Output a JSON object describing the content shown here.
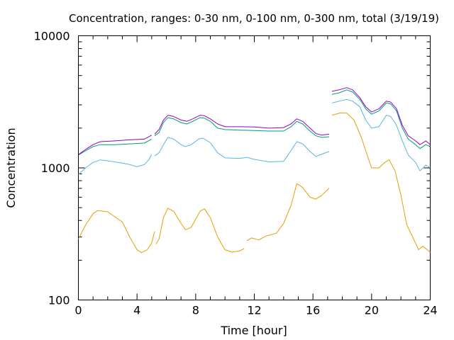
{
  "chart_data": {
    "type": "line",
    "title": "Concentration, ranges: 0-30 nm, 0-100 nm, 0-300 nm, total (3/19/19)",
    "xlabel": "Time [hour]",
    "ylabel": "Concentration",
    "xlim": [
      0,
      24
    ],
    "ylim": [
      100,
      10000
    ],
    "yscale": "log",
    "grid": false,
    "legend": "none",
    "x_ticks": [
      0,
      4,
      8,
      12,
      16,
      20,
      24
    ],
    "x_tick_labels": [
      "0",
      "4",
      "8",
      "12",
      "16",
      "20",
      "24"
    ],
    "y_ticks": [
      100,
      1000,
      10000
    ],
    "y_tick_labels": [
      "100",
      "1000",
      "10000"
    ],
    "series": [
      {
        "color": "#e69f00",
        "segments": [
          [
            [
              0,
              290
            ],
            [
              0.5,
              370
            ],
            [
              1,
              450
            ],
            [
              1.3,
              475
            ],
            [
              2,
              465
            ],
            [
              3,
              390
            ],
            [
              3.5,
              300
            ],
            [
              4,
              240
            ],
            [
              4.3,
              228
            ],
            [
              4.7,
              240
            ],
            [
              5,
              270
            ],
            [
              5.2,
              330
            ]
          ],
          [
            [
              5.3,
              265
            ],
            [
              5.5,
              290
            ],
            [
              5.8,
              420
            ],
            [
              6.1,
              495
            ],
            [
              6.5,
              470
            ],
            [
              7,
              380
            ],
            [
              7.3,
              340
            ],
            [
              7.7,
              355
            ],
            [
              8.3,
              470
            ],
            [
              8.6,
              490
            ],
            [
              9,
              420
            ],
            [
              9.5,
              300
            ],
            [
              10,
              240
            ],
            [
              10.5,
              230
            ],
            [
              11,
              235
            ],
            [
              11.3,
              245
            ]
          ],
          [
            [
              11.5,
              280
            ],
            [
              11.8,
              295
            ],
            [
              12.3,
              285
            ],
            [
              12.8,
              305
            ],
            [
              13.5,
              320
            ],
            [
              14,
              380
            ],
            [
              14.5,
              520
            ],
            [
              14.9,
              760
            ],
            [
              15.3,
              710
            ],
            [
              15.8,
              600
            ],
            [
              16.2,
              580
            ],
            [
              16.6,
              620
            ],
            [
              17.1,
              700
            ]
          ],
          [
            [
              17.3,
              2500
            ],
            [
              17.8,
              2600
            ],
            [
              18.3,
              2600
            ],
            [
              18.8,
              2300
            ],
            [
              19.3,
              1700
            ],
            [
              19.7,
              1250
            ],
            [
              20,
              1000
            ],
            [
              20.5,
              1000
            ],
            [
              20.9,
              1100
            ],
            [
              21.2,
              1150
            ],
            [
              21.6,
              950
            ],
            [
              22,
              620
            ],
            [
              22.4,
              370
            ],
            [
              22.8,
              300
            ],
            [
              23.2,
              240
            ],
            [
              23.5,
              255
            ],
            [
              24,
              230
            ]
          ]
        ]
      },
      {
        "color": "#56b4e9",
        "segments": [
          [
            [
              0,
              890
            ],
            [
              0.5,
              1000
            ],
            [
              1,
              1100
            ],
            [
              1.5,
              1150
            ],
            [
              2.5,
              1110
            ],
            [
              3.5,
              1060
            ],
            [
              4,
              1020
            ],
            [
              4.5,
              1060
            ],
            [
              4.8,
              1150
            ],
            [
              5,
              1260
            ]
          ],
          [
            [
              5.2,
              1230
            ],
            [
              5.5,
              1300
            ],
            [
              5.8,
              1500
            ],
            [
              6.1,
              1700
            ],
            [
              6.5,
              1650
            ],
            [
              7,
              1500
            ],
            [
              7.3,
              1450
            ],
            [
              7.7,
              1500
            ],
            [
              8.2,
              1650
            ],
            [
              8.5,
              1680
            ],
            [
              9,
              1550
            ],
            [
              9.5,
              1300
            ],
            [
              10,
              1190
            ],
            [
              11,
              1180
            ],
            [
              11.5,
              1200
            ],
            [
              12,
              1160
            ],
            [
              13,
              1110
            ],
            [
              14,
              1120
            ],
            [
              14.5,
              1350
            ],
            [
              14.9,
              1580
            ],
            [
              15.3,
              1520
            ],
            [
              15.8,
              1330
            ],
            [
              16.2,
              1220
            ],
            [
              16.6,
              1270
            ],
            [
              17.1,
              1330
            ]
          ],
          [
            [
              17.3,
              3100
            ],
            [
              17.8,
              3200
            ],
            [
              18.3,
              3300
            ],
            [
              18.7,
              3200
            ],
            [
              19.2,
              2900
            ],
            [
              19.6,
              2300
            ],
            [
              20,
              2000
            ],
            [
              20.5,
              2050
            ],
            [
              21,
              2500
            ],
            [
              21.3,
              2450
            ],
            [
              21.7,
              2100
            ],
            [
              22.1,
              1600
            ],
            [
              22.5,
              1250
            ],
            [
              23,
              1100
            ],
            [
              23.3,
              950
            ],
            [
              23.7,
              1050
            ],
            [
              24,
              1000
            ]
          ]
        ]
      },
      {
        "color": "#009e73",
        "segments": [
          [
            [
              0,
              1250
            ],
            [
              0.5,
              1350
            ],
            [
              1,
              1450
            ],
            [
              1.5,
              1500
            ],
            [
              2.5,
              1500
            ],
            [
              3.5,
              1520
            ],
            [
              4.5,
              1540
            ],
            [
              5,
              1650
            ]
          ],
          [
            [
              5.2,
              1750
            ],
            [
              5.5,
              1850
            ],
            [
              5.8,
              2200
            ],
            [
              6.1,
              2400
            ],
            [
              6.5,
              2350
            ],
            [
              7,
              2200
            ],
            [
              7.4,
              2150
            ],
            [
              7.8,
              2250
            ],
            [
              8.3,
              2400
            ],
            [
              8.6,
              2380
            ],
            [
              9,
              2250
            ],
            [
              9.5,
              2000
            ],
            [
              10,
              1950
            ],
            [
              11,
              1930
            ],
            [
              12,
              1920
            ],
            [
              13,
              1900
            ],
            [
              14,
              1900
            ],
            [
              14.5,
              2050
            ],
            [
              14.9,
              2250
            ],
            [
              15.3,
              2150
            ],
            [
              15.8,
              1900
            ],
            [
              16.2,
              1750
            ],
            [
              16.6,
              1700
            ],
            [
              17.1,
              1720
            ]
          ],
          [
            [
              17.3,
              3600
            ],
            [
              17.8,
              3700
            ],
            [
              18.3,
              3900
            ],
            [
              18.7,
              3750
            ],
            [
              19.2,
              3300
            ],
            [
              19.6,
              2800
            ],
            [
              20,
              2550
            ],
            [
              20.5,
              2700
            ],
            [
              21,
              3100
            ],
            [
              21.3,
              3050
            ],
            [
              21.7,
              2700
            ],
            [
              22.1,
              2000
            ],
            [
              22.5,
              1650
            ],
            [
              23,
              1500
            ],
            [
              23.3,
              1400
            ],
            [
              23.7,
              1500
            ],
            [
              24,
              1450
            ]
          ]
        ]
      },
      {
        "color": "#9400d3",
        "segments": [
          [
            [
              0,
              1260
            ],
            [
              0.5,
              1380
            ],
            [
              1,
              1500
            ],
            [
              1.5,
              1580
            ],
            [
              2.5,
              1600
            ],
            [
              3.5,
              1630
            ],
            [
              4.5,
              1650
            ],
            [
              5,
              1770
            ]
          ],
          [
            [
              5.2,
              1800
            ],
            [
              5.5,
              1950
            ],
            [
              5.8,
              2300
            ],
            [
              6.1,
              2500
            ],
            [
              6.5,
              2450
            ],
            [
              7,
              2300
            ],
            [
              7.4,
              2250
            ],
            [
              7.8,
              2350
            ],
            [
              8.3,
              2500
            ],
            [
              8.6,
              2480
            ],
            [
              9,
              2350
            ],
            [
              9.5,
              2150
            ],
            [
              10,
              2050
            ],
            [
              11,
              2050
            ],
            [
              12,
              2040
            ],
            [
              13,
              2000
            ],
            [
              14,
              2020
            ],
            [
              14.5,
              2150
            ],
            [
              14.9,
              2350
            ],
            [
              15.3,
              2250
            ],
            [
              15.8,
              2000
            ],
            [
              16.2,
              1820
            ],
            [
              16.6,
              1770
            ],
            [
              17.1,
              1800
            ]
          ],
          [
            [
              17.3,
              3800
            ],
            [
              17.8,
              3900
            ],
            [
              18.3,
              4050
            ],
            [
              18.7,
              3900
            ],
            [
              19.2,
              3400
            ],
            [
              19.6,
              2900
            ],
            [
              20,
              2650
            ],
            [
              20.5,
              2800
            ],
            [
              21,
              3200
            ],
            [
              21.3,
              3150
            ],
            [
              21.7,
              2800
            ],
            [
              22.1,
              2100
            ],
            [
              22.5,
              1750
            ],
            [
              23,
              1600
            ],
            [
              23.3,
              1500
            ],
            [
              23.7,
              1600
            ],
            [
              24,
              1500
            ]
          ]
        ]
      }
    ]
  }
}
